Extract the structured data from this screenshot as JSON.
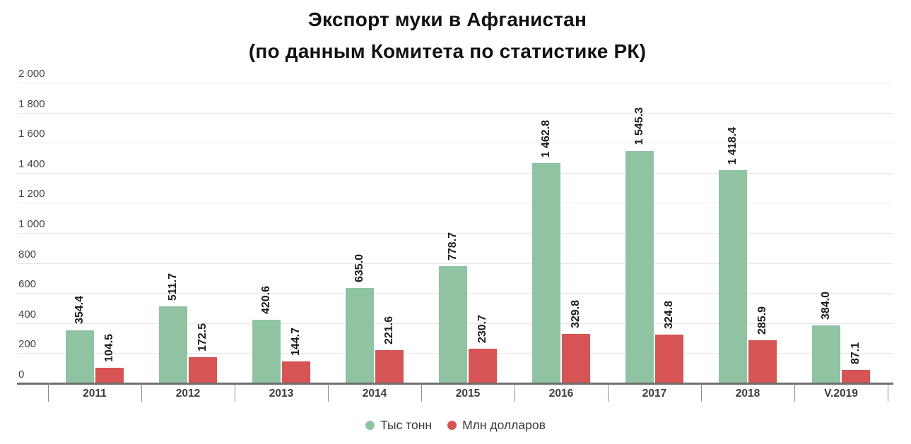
{
  "title": {
    "line1": "Экспорт муки в Афганистан",
    "line2": "(по данным Комитета по статистике РК)"
  },
  "chart_data": {
    "type": "bar",
    "title": "Экспорт муки в Афганистан (по данным Комитета по статистике РК)",
    "categories": [
      "2011",
      "2012",
      "2013",
      "2014",
      "2015",
      "2016",
      "2017",
      "2018",
      "V.2019"
    ],
    "series": [
      {
        "name": "Тыс тонн",
        "color": "#8FC3A2",
        "values": [
          354.4,
          511.7,
          420.6,
          635.0,
          778.7,
          1462.8,
          1545.3,
          1418.4,
          384.0
        ],
        "value_labels": [
          "354.4",
          "511.7",
          "420.6",
          "635.0",
          "778.7",
          "1 462.8",
          "1 545.3",
          "1 418.4",
          "384.0"
        ]
      },
      {
        "name": "Млн долларов",
        "color": "#D65454",
        "values": [
          104.5,
          172.5,
          144.7,
          221.6,
          230.7,
          329.8,
          324.8,
          285.9,
          87.1
        ],
        "value_labels": [
          "104.5",
          "172.5",
          "144.7",
          "221.6",
          "230.7",
          "329.8",
          "324.8",
          "285.9",
          "87.1"
        ]
      }
    ],
    "xlabel": "",
    "ylabel": "",
    "ylim": [
      0,
      2000
    ],
    "grid": true,
    "legend_position": "bottom",
    "y_ticks": [
      {
        "value": 0,
        "label": "0"
      },
      {
        "value": 200,
        "label": "200"
      },
      {
        "value": 400,
        "label": "400"
      },
      {
        "value": 600,
        "label": "600"
      },
      {
        "value": 800,
        "label": "800"
      },
      {
        "value": 1000,
        "label": "1 000"
      },
      {
        "value": 1200,
        "label": "1 200"
      },
      {
        "value": 1400,
        "label": "1 400"
      },
      {
        "value": 1600,
        "label": "1 600"
      },
      {
        "value": 1800,
        "label": "1 800"
      },
      {
        "value": 2000,
        "label": "2 000"
      }
    ]
  }
}
